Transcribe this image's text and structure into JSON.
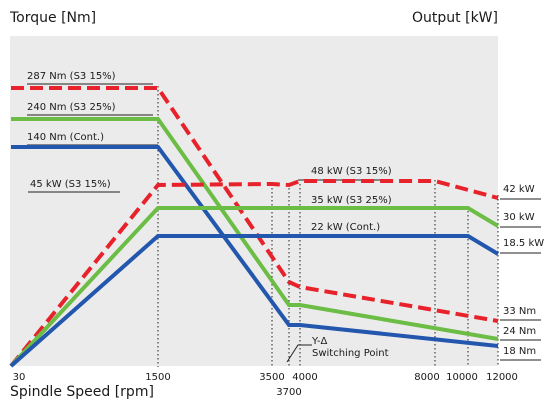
{
  "chart_data": {
    "type": "line",
    "title": "",
    "ylabel_left": "Torque [Nm]",
    "ylabel_right": "Output [kW]",
    "xlabel": "Spindle Speed [rpm]",
    "grid": false,
    "x_ticks": [
      "30",
      "1500",
      "3500",
      "3700",
      "4000",
      "8000",
      "10000",
      "12000"
    ],
    "colors": {
      "s3_15": "#e8222a",
      "s3_25": "#6cbd45",
      "cont": "#2356ad"
    },
    "series": [
      {
        "key": "t15",
        "name": "287 Nm (S3 15%)",
        "color": "#e8222a",
        "dashed": true,
        "points": [
          [
            30,
            287
          ],
          [
            1500,
            287
          ],
          [
            3700,
            69
          ],
          [
            4000,
            66
          ],
          [
            12000,
            33
          ]
        ]
      },
      {
        "key": "t25",
        "name": "240 Nm (S3 25%)",
        "color": "#6cbd45",
        "dashed": false,
        "points": [
          [
            30,
            240
          ],
          [
            1500,
            240
          ],
          [
            3700,
            53
          ],
          [
            4000,
            51
          ],
          [
            12000,
            24
          ]
        ]
      },
      {
        "key": "tc",
        "name": "140 Nm (Cont.)",
        "color": "#2356ad",
        "dashed": false,
        "points": [
          [
            30,
            140
          ],
          [
            1500,
            140
          ],
          [
            3700,
            31
          ],
          [
            4000,
            30
          ],
          [
            12000,
            18
          ]
        ]
      },
      {
        "key": "p15",
        "name": "48 kW (S3 15%)",
        "color": "#e8222a",
        "dashed": true,
        "points": [
          [
            30,
            0
          ],
          [
            1500,
            45
          ],
          [
            3500,
            46
          ],
          [
            3700,
            45
          ],
          [
            4000,
            48
          ],
          [
            8000,
            48
          ],
          [
            12000,
            42
          ]
        ]
      },
      {
        "key": "p25",
        "name": "35 kW (S3 25%)",
        "color": "#6cbd45",
        "dashed": false,
        "points": [
          [
            30,
            0
          ],
          [
            1500,
            35
          ],
          [
            10000,
            35
          ],
          [
            12000,
            30
          ]
        ]
      },
      {
        "key": "pc",
        "name": "22 kW (Cont.)",
        "color": "#2356ad",
        "dashed": false,
        "points": [
          [
            30,
            0
          ],
          [
            1500,
            22
          ],
          [
            10000,
            22
          ],
          [
            12000,
            18.5
          ]
        ]
      }
    ],
    "labels": {
      "t15": "287 Nm (S3 15%)",
      "t25": "240 Nm (S3 25%)",
      "tc": "140 Nm (Cont.)",
      "p15_left": "45 kW (S3 15%)",
      "p15_mid": "48 kW (S3 15%)",
      "p25_mid": "35 kW (S3 25%)",
      "pc_mid": "22 kW (Cont.)",
      "end_p15": "42 kW",
      "end_p25": "30 kW",
      "end_pc": "18.5 kW",
      "end_t15": "33 Nm",
      "end_t25": "24 Nm",
      "end_tc": "18 Nm",
      "yd": "Y-Δ",
      "switching": "Switching Point"
    }
  }
}
